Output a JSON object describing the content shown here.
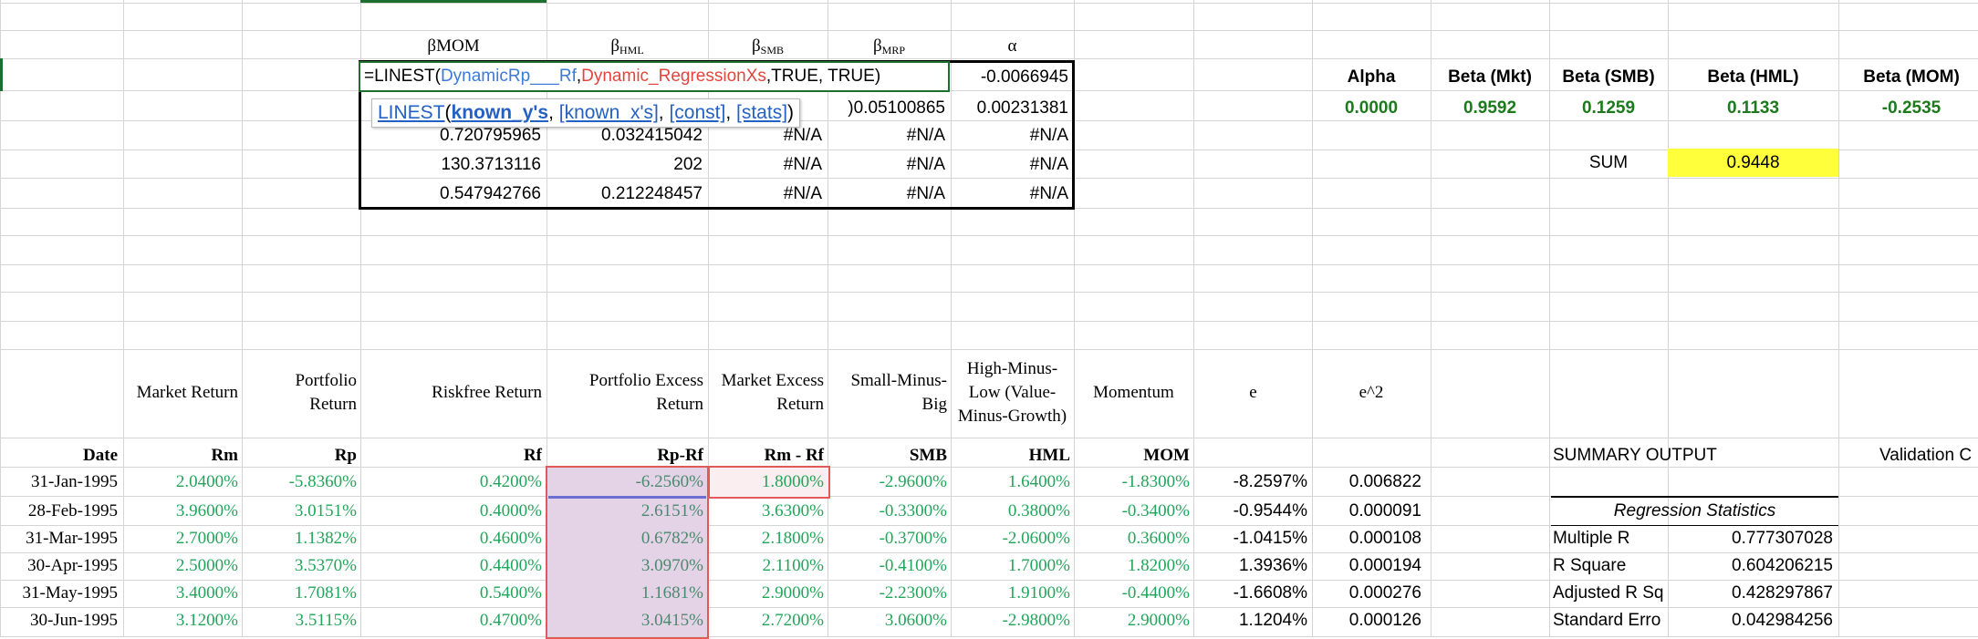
{
  "formula": {
    "prefix": "=LINEST(",
    "ref1": "DynamicRp___Rf",
    "sep1": ",",
    "ref2": "Dynamic_RegressionXs",
    "suffix": ",TRUE, TRUE)"
  },
  "tooltip": {
    "fn": "LINEST",
    "open": "(",
    "arg1": "known_y's",
    "arg2": "[known_x's]",
    "arg3": "[const]",
    "arg4": "[stats]",
    "close": ")"
  },
  "linest": {
    "headers": [
      "βMOM",
      "β",
      "HML",
      "β",
      "SMB",
      "β",
      "MRP",
      "α"
    ],
    "rows": [
      [
        "",
        "",
        "",
        "",
        "-0.0066945"
      ],
      [
        "",
        "",
        "",
        ")0.05100865",
        "0.00231381"
      ],
      [
        "0.720795965",
        "0.032415042",
        "#N/A",
        "#N/A",
        "#N/A"
      ],
      [
        "130.3713116",
        "202",
        "#N/A",
        "#N/A",
        "#N/A"
      ],
      [
        "0.547942766",
        "0.212248457",
        "#N/A",
        "#N/A",
        "#N/A"
      ]
    ]
  },
  "betas": {
    "headers": [
      "Alpha",
      "Beta (Mkt)",
      "Beta (SMB)",
      "Beta (HML)",
      "Beta (MOM)"
    ],
    "values": [
      "0.0000",
      "0.9592",
      "0.1259",
      "0.1133",
      "-0.2535"
    ],
    "sum_label": "SUM",
    "sum_value": "0.9448"
  },
  "table": {
    "long_headers": [
      "Market Return",
      "Portfolio Return",
      "Riskfree Return",
      "Portfolio Excess Return",
      "Market Excess Return",
      "Small-Minus-Big",
      "High-Minus-Low (Value-Minus-Growth)",
      "Momentum",
      "e",
      "e^2"
    ],
    "short_headers": [
      "Date",
      "Rm",
      "Rp",
      "Rf",
      "Rp-Rf",
      "Rm - Rf",
      "SMB",
      "HML",
      "MOM"
    ],
    "rows": [
      {
        "date": "31-Jan-1995",
        "rm": "2.0400%",
        "rp": "-5.8360%",
        "rf": "0.4200%",
        "rprf": "-6.2560%",
        "rmrf": "1.8000%",
        "smb": "-2.9600%",
        "hml": "1.6400%",
        "mom": "-1.8300%",
        "e": "-8.2597%",
        "e2": "0.006822"
      },
      {
        "date": "28-Feb-1995",
        "rm": "3.9600%",
        "rp": "3.0151%",
        "rf": "0.4000%",
        "rprf": "2.6151%",
        "rmrf": "3.6300%",
        "smb": "-0.3300%",
        "hml": "0.3800%",
        "mom": "-0.3400%",
        "e": "-0.9544%",
        "e2": "0.000091"
      },
      {
        "date": "31-Mar-1995",
        "rm": "2.7000%",
        "rp": "1.1382%",
        "rf": "0.4600%",
        "rprf": "0.6782%",
        "rmrf": "2.1800%",
        "smb": "-0.3700%",
        "hml": "-2.0600%",
        "mom": "0.3600%",
        "e": "-1.0415%",
        "e2": "0.000108"
      },
      {
        "date": "30-Apr-1995",
        "rm": "2.5000%",
        "rp": "3.5370%",
        "rf": "0.4400%",
        "rprf": "3.0970%",
        "rmrf": "2.1100%",
        "smb": "-0.4100%",
        "hml": "1.7000%",
        "mom": "1.8200%",
        "e": "1.3936%",
        "e2": "0.000194"
      },
      {
        "date": "31-May-1995",
        "rm": "3.4000%",
        "rp": "1.7081%",
        "rf": "0.5400%",
        "rprf": "1.1681%",
        "rmrf": "2.9000%",
        "smb": "-2.2300%",
        "hml": "1.9100%",
        "mom": "-0.4400%",
        "e": "-1.6608%",
        "e2": "0.000276"
      },
      {
        "date": "30-Jun-1995",
        "rm": "3.1200%",
        "rp": "3.5115%",
        "rf": "0.4700%",
        "rprf": "3.0415%",
        "rmrf": "2.7200%",
        "smb": "3.0600%",
        "hml": "-2.9800%",
        "mom": "2.9000%",
        "e": "1.1204%",
        "e2": "0.000126"
      }
    ]
  },
  "summary": {
    "title": "SUMMARY OUTPUT",
    "validation": "Validation C",
    "stats_title": "Regression Statistics",
    "stats": [
      {
        "label": "Multiple R",
        "value": "0.777307028"
      },
      {
        "label": "R Square",
        "value": "0.604206215"
      },
      {
        "label": "Adjusted R Sq",
        "value": "0.428297867"
      },
      {
        "label": "Standard Erro",
        "value": "0.042984256"
      }
    ]
  }
}
